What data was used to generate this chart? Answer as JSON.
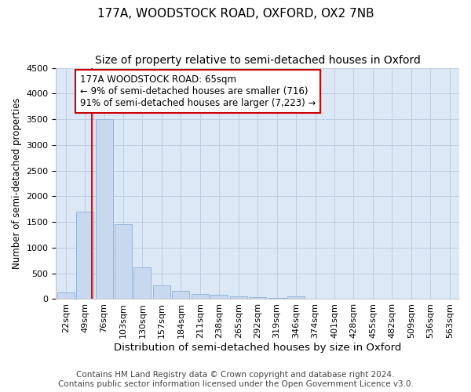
{
  "title": "177A, WOODSTOCK ROAD, OXFORD, OX2 7NB",
  "subtitle": "Size of property relative to semi-detached houses in Oxford",
  "xlabel": "Distribution of semi-detached houses by size in Oxford",
  "ylabel": "Number of semi-detached properties",
  "bar_color": "#c8d8ee",
  "bar_edge_color": "#8ab0d8",
  "grid_color": "#c0cce0",
  "background_color": "#dce8f5",
  "categories": [
    "22sqm",
    "49sqm",
    "76sqm",
    "103sqm",
    "130sqm",
    "157sqm",
    "184sqm",
    "211sqm",
    "238sqm",
    "265sqm",
    "292sqm",
    "319sqm",
    "346sqm",
    "374sqm",
    "401sqm",
    "428sqm",
    "455sqm",
    "482sqm",
    "509sqm",
    "536sqm",
    "563sqm"
  ],
  "bar_values": [
    130,
    1700,
    3500,
    1450,
    620,
    270,
    165,
    105,
    80,
    55,
    40,
    25,
    55,
    0,
    0,
    0,
    0,
    0,
    0,
    0,
    0
  ],
  "ylim": [
    0,
    4500
  ],
  "yticks": [
    0,
    500,
    1000,
    1500,
    2000,
    2500,
    3000,
    3500,
    4000,
    4500
  ],
  "red_line_x": 1.35,
  "annotation_line1": "177A WOODSTOCK ROAD: 65sqm",
  "annotation_line2": "← 9% of semi-detached houses are smaller (716)",
  "annotation_line3": "91% of semi-detached houses are larger (7,223) →",
  "annotation_box_color": "#ffffff",
  "annotation_box_edge_color": "#cc0000",
  "footer_line1": "Contains HM Land Registry data © Crown copyright and database right 2024.",
  "footer_line2": "Contains public sector information licensed under the Open Government Licence v3.0.",
  "title_fontsize": 11,
  "subtitle_fontsize": 10,
  "xlabel_fontsize": 9.5,
  "ylabel_fontsize": 8.5,
  "tick_fontsize": 8,
  "annotation_fontsize": 8.5,
  "footer_fontsize": 7.5
}
